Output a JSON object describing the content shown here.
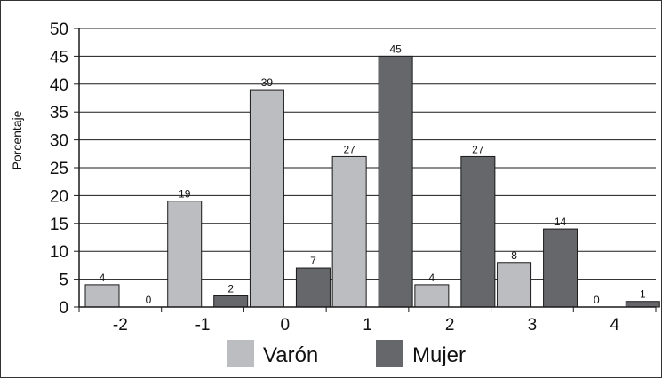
{
  "chart_data": {
    "type": "bar",
    "title": "",
    "xlabel": "",
    "ylabel": "Porcentaje",
    "ylim": [
      0,
      50
    ],
    "yticks": [
      0,
      5,
      10,
      15,
      20,
      25,
      30,
      35,
      40,
      45,
      50
    ],
    "categories": [
      "-2",
      "-1",
      "0",
      "1",
      "2",
      "3",
      "4"
    ],
    "series": [
      {
        "name": "Varón",
        "color": "#bcbdc1",
        "values": [
          4,
          19,
          39,
          27,
          4,
          8,
          0
        ]
      },
      {
        "name": "Mujer",
        "color": "#66676b",
        "values": [
          0,
          2,
          7,
          45,
          27,
          14,
          1
        ]
      }
    ],
    "grid": true,
    "legend_position": "bottom"
  }
}
